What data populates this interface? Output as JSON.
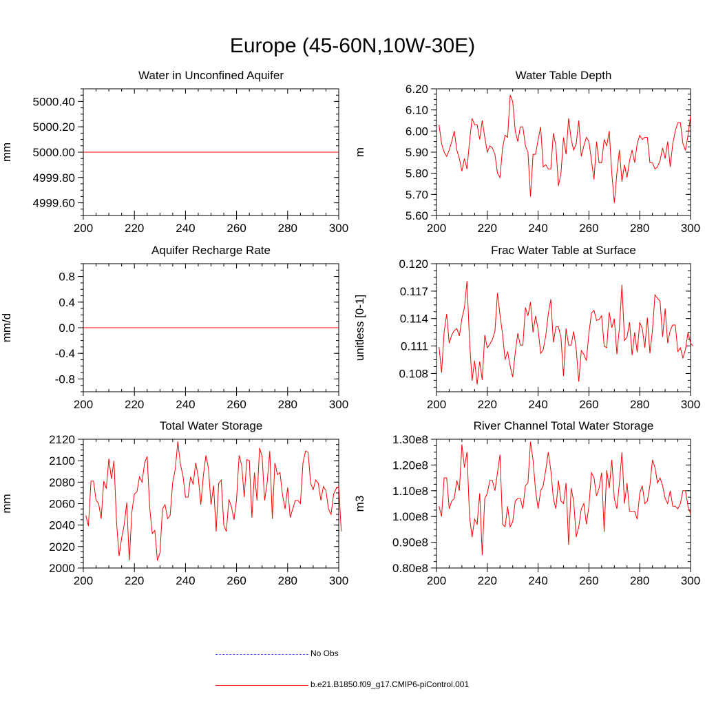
{
  "figure": {
    "title": "Europe (45-60N,10W-30E)"
  },
  "legend": {
    "items": [
      {
        "label": "No Obs",
        "color": "#4040ff",
        "style": "dashed"
      },
      {
        "label": "b.e21.B1850.f09_g17.CMIP6-piControl.001",
        "color": "#ff0000",
        "style": "solid"
      }
    ]
  },
  "chart_data": [
    {
      "type": "line",
      "title": "Water in Unconfined Aquifer",
      "ylabel": "mm",
      "xlabel": "",
      "xlim": [
        200,
        300
      ],
      "ylim": [
        4999.5,
        5000.5
      ],
      "xticks": [
        200,
        220,
        240,
        260,
        280,
        300
      ],
      "yticks": [
        4999.6,
        4999.8,
        5000.0,
        5000.2,
        5000.4
      ],
      "ytick_labels": [
        "4999.60",
        "4999.80",
        "5000.00",
        "5000.20",
        "5000.40"
      ],
      "series": [
        {
          "name": "b.e21.B1850.f09_g17.CMIP6-piControl.001",
          "color": "#ff0000",
          "x": [
            200,
            300
          ],
          "y": [
            5000.0,
            5000.0
          ]
        }
      ]
    },
    {
      "type": "line",
      "title": "Water Table Depth",
      "ylabel": "m",
      "xlabel": "",
      "xlim": [
        200,
        300
      ],
      "ylim": [
        5.6,
        6.2
      ],
      "xticks": [
        200,
        220,
        240,
        260,
        280,
        300
      ],
      "yticks": [
        5.6,
        5.7,
        5.8,
        5.9,
        6.0,
        6.1,
        6.2
      ],
      "ytick_labels": [
        "5.60",
        "5.70",
        "5.80",
        "5.90",
        "6.00",
        "6.10",
        "6.20"
      ],
      "series": [
        {
          "name": "b.e21.B1850.f09_g17.CMIP6-piControl.001",
          "color": "#ff0000",
          "x_start": 201,
          "x_step": 1,
          "y": [
            6.03,
            5.94,
            5.9,
            5.88,
            5.91,
            5.95,
            6.0,
            5.91,
            5.87,
            5.81,
            5.87,
            5.82,
            5.95,
            6.06,
            6.03,
            6.03,
            5.96,
            6.05,
            5.97,
            5.9,
            5.93,
            5.92,
            5.89,
            5.8,
            5.78,
            5.92,
            5.98,
            5.97,
            6.17,
            6.14,
            6.0,
            5.95,
            6.02,
            6.02,
            5.93,
            5.9,
            5.69,
            5.89,
            5.89,
            5.96,
            6.02,
            5.83,
            5.84,
            5.82,
            5.82,
            5.99,
            5.93,
            5.74,
            5.8,
            5.97,
            5.89,
            6.06,
            5.96,
            5.91,
            5.94,
            6.05,
            5.88,
            5.93,
            5.97,
            5.95,
            5.86,
            5.77,
            5.95,
            5.85,
            5.85,
            5.96,
            5.93,
            6.0,
            5.8,
            5.66,
            5.8,
            5.91,
            5.76,
            5.84,
            5.78,
            5.86,
            5.91,
            5.85,
            5.94,
            5.98,
            5.96,
            5.97,
            5.97,
            5.85,
            5.85,
            5.82,
            5.83,
            5.86,
            5.92,
            5.87,
            5.95,
            5.83,
            5.94,
            6.0,
            6.04,
            6.04,
            5.94,
            5.91,
            5.98,
            6.07
          ]
        }
      ]
    },
    {
      "type": "line",
      "title": "Aquifer Recharge Rate",
      "ylabel": "mm/d",
      "xlabel": "",
      "xlim": [
        200,
        300
      ],
      "ylim": [
        -1.0,
        1.0
      ],
      "xticks": [
        200,
        220,
        240,
        260,
        280,
        300
      ],
      "yticks": [
        -0.8,
        -0.4,
        0.0,
        0.4,
        0.8
      ],
      "ytick_labels": [
        "-0.8",
        "-0.4",
        "0.0",
        "0.4",
        "0.8"
      ],
      "series": [
        {
          "name": "b.e21.B1850.f09_g17.CMIP6-piControl.001",
          "color": "#ff0000",
          "x": [
            200,
            300
          ],
          "y": [
            0.0,
            0.0
          ]
        }
      ]
    },
    {
      "type": "line",
      "title": "Frac Water Table at Surface",
      "ylabel": "unitless [0-1]",
      "xlabel": "",
      "xlim": [
        200,
        300
      ],
      "ylim": [
        0.106,
        0.12
      ],
      "xticks": [
        200,
        220,
        240,
        260,
        280,
        300
      ],
      "yticks": [
        0.108,
        0.111,
        0.114,
        0.117,
        0.12
      ],
      "ytick_labels": [
        "0.108",
        "0.111",
        "0.114",
        "0.117",
        "0.120"
      ],
      "series": [
        {
          "name": "b.e21.B1850.f09_g17.CMIP6-piControl.001",
          "color": "#ff0000",
          "x_start": 201,
          "x_step": 1,
          "y": [
            0.1109,
            0.1081,
            0.1125,
            0.1145,
            0.1113,
            0.1122,
            0.1127,
            0.1129,
            0.1121,
            0.114,
            0.1152,
            0.1181,
            0.1116,
            0.1072,
            0.1094,
            0.1068,
            0.1093,
            0.1073,
            0.1122,
            0.1108,
            0.1112,
            0.1117,
            0.1126,
            0.1168,
            0.1144,
            0.1123,
            0.1095,
            0.1104,
            0.1088,
            0.1076,
            0.1103,
            0.1124,
            0.1111,
            0.1111,
            0.1152,
            0.1143,
            0.1158,
            0.1125,
            0.1143,
            0.1128,
            0.1102,
            0.1106,
            0.1121,
            0.1145,
            0.1161,
            0.1114,
            0.1131,
            0.1131,
            0.1119,
            0.1077,
            0.1129,
            0.1111,
            0.1111,
            0.1126,
            0.1106,
            0.1071,
            0.1105,
            0.1101,
            0.1094,
            0.1124,
            0.1146,
            0.1149,
            0.1138,
            0.1139,
            0.1143,
            0.111,
            0.1108,
            0.1147,
            0.113,
            0.114,
            0.1101,
            0.113,
            0.1177,
            0.1116,
            0.112,
            0.1136,
            0.11,
            0.1125,
            0.1103,
            0.1136,
            0.1129,
            0.1108,
            0.1141,
            0.1102,
            0.1127,
            0.1166,
            0.1162,
            0.1159,
            0.112,
            0.1151,
            0.1113,
            0.1127,
            0.1133,
            0.1133,
            0.1104,
            0.1108,
            0.1097,
            0.1106,
            0.1125,
            0.1113,
            0.111
          ]
        }
      ]
    },
    {
      "type": "line",
      "title": "Total Water Storage",
      "ylabel": "mm",
      "xlabel": "",
      "xlim": [
        200,
        300
      ],
      "ylim": [
        2000,
        2120
      ],
      "xticks": [
        200,
        220,
        240,
        260,
        280,
        300
      ],
      "yticks": [
        2000,
        2020,
        2040,
        2060,
        2080,
        2100,
        2120
      ],
      "ytick_labels": [
        "2000",
        "2020",
        "2040",
        "2060",
        "2080",
        "2100",
        "2120"
      ],
      "series": [
        {
          "name": "b.e21.B1850.f09_g17.CMIP6-piControl.001",
          "color": "#ff0000",
          "x_start": 201,
          "x_step": 1,
          "y": [
            2049,
            2039,
            2081,
            2081,
            2063,
            2060,
            2046,
            2081,
            2074,
            2102,
            2083,
            2100,
            2043,
            2011,
            2028,
            2040,
            2061,
            2007,
            2052,
            2069,
            2071,
            2085,
            2080,
            2098,
            2104,
            2056,
            2032,
            2035,
            2007,
            2014,
            2055,
            2059,
            2046,
            2049,
            2080,
            2092,
            2118,
            2097,
            2086,
            2066,
            2066,
            2085,
            2078,
            2098,
            2085,
            2059,
            2086,
            2105,
            2093,
            2059,
            2077,
            2034,
            2079,
            2082,
            2040,
            2034,
            2064,
            2057,
            2045,
            2064,
            2105,
            2096,
            2066,
            2101,
            2100,
            2047,
            2089,
            2063,
            2112,
            2104,
            2063,
            2080,
            2109,
            2046,
            2098,
            2087,
            2089,
            2068,
            2055,
            2075,
            2047,
            2055,
            2063,
            2063,
            2060,
            2098,
            2109,
            2108,
            2079,
            2073,
            2082,
            2079,
            2063,
            2076,
            2072,
            2055,
            2050,
            2069,
            2074,
            2076,
            2034
          ]
        }
      ]
    },
    {
      "type": "line",
      "title": "River Channel Total Water Storage",
      "ylabel": "m3",
      "xlabel": "",
      "xlim": [
        200,
        300
      ],
      "ylim": [
        80000000.0,
        130000000.0
      ],
      "xticks": [
        200,
        220,
        240,
        260,
        280,
        300
      ],
      "yticks": [
        80000000.0,
        90000000.0,
        100000000.0,
        110000000.0,
        120000000.0,
        130000000.0
      ],
      "ytick_labels": [
        "0.80e8",
        "0.90e8",
        "1.00e8",
        "1.10e8",
        "1.20e8",
        "1.30e8"
      ],
      "series": [
        {
          "name": "b.e21.B1850.f09_g17.CMIP6-piControl.001",
          "color": "#ff0000",
          "x_start": 201,
          "x_step": 1,
          "y": [
            104000000.0,
            100000000.0,
            115000000.0,
            115000000.0,
            103000000.0,
            106000000.0,
            107000000.0,
            114000000.0,
            110000000.0,
            128000000.0,
            119000000.0,
            125000000.0,
            100000000.0,
            92000000.0,
            99000000.0,
            97000000.0,
            109000000.0,
            85000000.0,
            107000000.0,
            109000000.0,
            114000000.0,
            114000000.0,
            110000000.0,
            117000000.0,
            124000000.0,
            97000000.0,
            96000000.0,
            104000000.0,
            96000000.0,
            98000000.0,
            106000000.0,
            107000000.0,
            107000000.0,
            103000000.0,
            112000000.0,
            113000000.0,
            129000000.0,
            122000000.0,
            110000000.0,
            103000000.0,
            110000000.0,
            112000000.0,
            118000000.0,
            125000000.0,
            118000000.0,
            107000000.0,
            103000000.0,
            114000000.0,
            106000000.0,
            105000000.0,
            113000000.0,
            89000000.0,
            111000000.0,
            106000000.0,
            92000000.0,
            96000000.0,
            103000000.0,
            105000000.0,
            97000000.0,
            104000000.0,
            117000000.0,
            115000000.0,
            108000000.0,
            111000000.0,
            117000000.0,
            94000000.0,
            118000000.0,
            111000000.0,
            122000000.0,
            107000000.0,
            103000000.0,
            113000000.0,
            125000000.0,
            105000000.0,
            113000000.0,
            102000000.0,
            102000000.0,
            102000000.0,
            99000000.0,
            109000000.0,
            112000000.0,
            105000000.0,
            106000000.0,
            112000000.0,
            122000000.0,
            119000000.0,
            113000000.0,
            115000000.0,
            112000000.0,
            107000000.0,
            105000000.0,
            110000000.0,
            104000000.0,
            104000000.0,
            103000000.0,
            105000000.0,
            110000000.0,
            110000000.0,
            104000000.0,
            101000000.0
          ]
        }
      ]
    }
  ]
}
